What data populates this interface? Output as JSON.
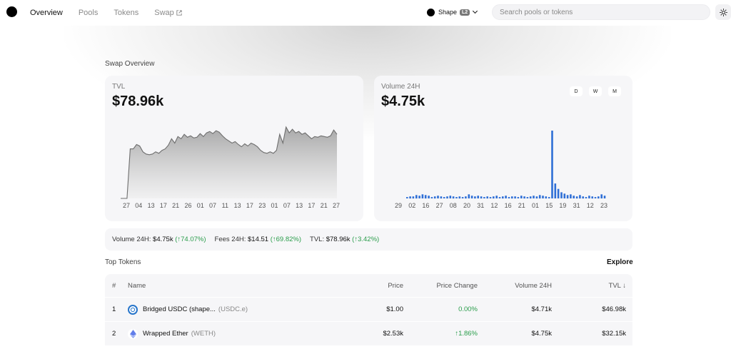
{
  "nav": {
    "items": [
      {
        "label": "Overview",
        "active": true
      },
      {
        "label": "Pools",
        "active": false
      },
      {
        "label": "Tokens",
        "active": false
      },
      {
        "label": "Swap",
        "active": false,
        "external": true
      }
    ],
    "external_icon": "external-link-icon"
  },
  "network": {
    "name": "Shape",
    "badge": "L2"
  },
  "search": {
    "placeholder": "Search pools or tokens"
  },
  "overview": {
    "title": "Swap Overview"
  },
  "tvl": {
    "label": "TVL",
    "value": "$78.96k",
    "x_ticks": [
      "27",
      "04",
      "13",
      "17",
      "21",
      "26",
      "01",
      "07",
      "11",
      "13",
      "17",
      "23",
      "01",
      "07",
      "13",
      "17",
      "21",
      "27"
    ]
  },
  "volume": {
    "label": "Volume 24H",
    "value": "$4.75k",
    "timeframes": [
      "D",
      "W",
      "M"
    ],
    "x_ticks": [
      "29",
      "02",
      "16",
      "27",
      "08",
      "20",
      "31",
      "12",
      "16",
      "21",
      "01",
      "15",
      "19",
      "31",
      "12",
      "23"
    ]
  },
  "chart_data": [
    {
      "type": "area",
      "title": "TVL",
      "x_ticks": [
        "27",
        "04",
        "13",
        "17",
        "21",
        "26",
        "01",
        "07",
        "11",
        "13",
        "17",
        "23",
        "01",
        "07",
        "13",
        "17",
        "21",
        "27"
      ],
      "values": [
        0,
        0,
        0,
        0.68,
        0.68,
        0.74,
        0.72,
        0.64,
        0.61,
        0.6,
        0.61,
        0.64,
        0.62,
        0.66,
        0.68,
        0.73,
        0.82,
        0.76,
        0.85,
        0.82,
        0.88,
        0.84,
        0.86,
        0.83,
        0.84,
        0.89,
        0.85,
        0.9,
        0.92,
        0.89,
        0.93,
        0.91,
        0.86,
        0.82,
        0.79,
        0.76,
        0.78,
        0.74,
        0.71,
        0.75,
        0.72,
        0.76,
        0.74,
        0.71,
        0.66,
        0.63,
        0.62,
        0.64,
        0.62,
        0.66,
        0.88,
        0.76,
        0.98,
        0.9,
        0.95,
        0.9,
        0.92,
        0.88,
        0.9,
        0.86,
        0.82,
        0.85,
        0.84,
        0.86,
        0.85,
        0.84,
        0.86,
        0.94,
        0.88
      ]
    },
    {
      "type": "bar",
      "title": "Volume 24H",
      "x_ticks": [
        "29",
        "02",
        "16",
        "27",
        "08",
        "20",
        "31",
        "12",
        "16",
        "21",
        "01",
        "15",
        "19",
        "31",
        "12",
        "23"
      ],
      "values": [
        0.02,
        0.03,
        0.03,
        0.05,
        0.04,
        0.06,
        0.05,
        0.04,
        0.02,
        0.03,
        0.04,
        0.03,
        0.02,
        0.03,
        0.04,
        0.03,
        0.02,
        0.03,
        0.02,
        0.03,
        0.06,
        0.04,
        0.03,
        0.04,
        0.03,
        0.02,
        0.03,
        0.02,
        0.03,
        0.04,
        0.02,
        0.03,
        0.04,
        0.02,
        0.03,
        0.03,
        0.02,
        0.04,
        0.03,
        0.02,
        0.03,
        0.04,
        0.03,
        0.05,
        0.04,
        0.03,
        0.02,
        1.0,
        0.22,
        0.14,
        0.09,
        0.07,
        0.05,
        0.06,
        0.04,
        0.03,
        0.05,
        0.03,
        0.02,
        0.04,
        0.03,
        0.02,
        0.03,
        0.06,
        0.04
      ]
    }
  ],
  "stats": [
    {
      "label": "Volume 24H:",
      "value": "$4.75k",
      "change": "(↑74.07%)"
    },
    {
      "label": "Fees 24H:",
      "value": "$14.51",
      "change": "(↑69.82%)"
    },
    {
      "label": "TVL:",
      "value": "$78.96k",
      "change": "(↑3.42%)"
    }
  ],
  "top_tokens": {
    "title": "Top Tokens",
    "explore": "Explore",
    "columns": {
      "index": "#",
      "name": "Name",
      "price": "Price",
      "change": "Price Change",
      "volume": "Volume 24H",
      "tvl": "TVL ↓"
    },
    "rows": [
      {
        "index": "1",
        "name": "Bridged USDC (shape...",
        "symbol": "(USDC.e)",
        "price": "$1.00",
        "change": "0.00%",
        "volume": "$4.71k",
        "tvl": "$46.98k",
        "icon": "usdc-icon",
        "icon_color": "#2775ca"
      },
      {
        "index": "2",
        "name": "Wrapped Ether",
        "symbol": "(WETH)",
        "price": "$2.53k",
        "change": "↑1.86%",
        "volume": "$4.75k",
        "tvl": "$32.15k",
        "icon": "eth-icon",
        "icon_color": "#627eea"
      }
    ]
  }
}
